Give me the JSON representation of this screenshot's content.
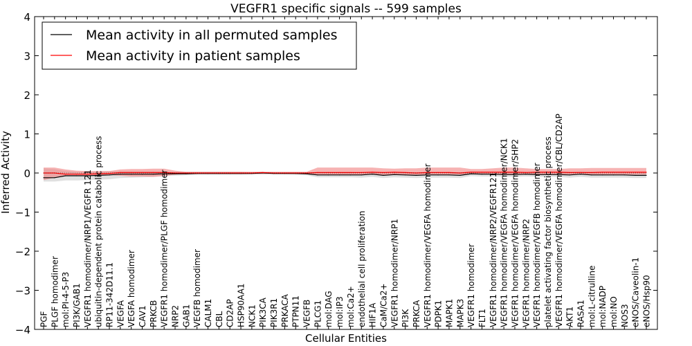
{
  "chart_data": {
    "type": "line",
    "title": "VEGFR1 specific signals -- 599 samples",
    "xlabel": "Cellular Entities",
    "ylabel": "Inferred Activity",
    "ylim": [
      -4,
      4
    ],
    "yticks": [
      -4,
      -3,
      -2,
      -1,
      0,
      1,
      2,
      3,
      4
    ],
    "ytick_labels": [
      "−4",
      "−3",
      "−2",
      "−1",
      "0",
      "1",
      "2",
      "3",
      "4"
    ],
    "grid": false,
    "legend_position": "top-left",
    "categories": [
      "PGF",
      "PLGF homodimer",
      "mol:PI-4-5-P3",
      "PI3K/GAB1",
      "VEGFR1 homodimer/NRP1/VEGFR 121",
      "ubiquitin-dependent protein catabolic process",
      "RP11-342D11.1",
      "VEGFA",
      "VEGFA homodimer",
      "CAV1",
      "PRKCB",
      "VEGFR1 homodimer/PLGF homodimer",
      "NRP2",
      "GAB1",
      "VEGFB homodimer",
      "CALM1",
      "CBL",
      "CD2AP",
      "HSP90AA1",
      "NCK1",
      "PIK3CA",
      "PIK3R1",
      "PRKACA",
      "PTPN11",
      "VEGFB",
      "PLCG1",
      "mol:DAG",
      "mol:IP3",
      "mol:Ca2+",
      "endothelial cell proliferation",
      "HIF1A",
      "CaM/Ca2+",
      "VEGFR1 homodimer/NRP1",
      "PI3K",
      "PRKCA",
      "VEGFR1 homodimer/VEGFA homodimer",
      "PDPK1",
      "MAPK1",
      "MAPK3",
      "VEGFR1 homodimer",
      "FLT1",
      "VEGFR1 homodimer/NRP2/VEGFR121",
      "VEGFR1 homodimer/VEGFA homodimer/NCK1",
      "VEGFR1 homodimer/VEGFA homodimer/SHP2",
      "VEGFR1 homodimer/NRP2",
      "VEGFR1 homodimer/VEGFB homodimer",
      "platelet activating factor biosynthetic process",
      "VEGFR1 homodimer/VEGFA homodimer/CBL/CD2AP",
      "AKT1",
      "RASA1",
      "mol:L-citrulline",
      "mol:NADP",
      "mol:NO",
      "NOS3",
      "eNOS/Caveolin-1",
      "eNOS/Hsp90"
    ],
    "series": [
      {
        "name": "Mean activity in all permuted samples",
        "color": "#000000",
        "band_color": "#bbbbbb",
        "values": [
          -0.12,
          -0.12,
          -0.07,
          -0.07,
          -0.07,
          -0.06,
          -0.05,
          -0.03,
          -0.03,
          -0.03,
          -0.03,
          -0.02,
          -0.02,
          -0.02,
          -0.01,
          -0.01,
          -0.01,
          -0.01,
          -0.01,
          -0.01,
          0.0,
          -0.01,
          -0.01,
          -0.01,
          -0.02,
          -0.05,
          -0.05,
          -0.05,
          -0.05,
          -0.05,
          -0.03,
          -0.06,
          -0.04,
          -0.05,
          -0.06,
          -0.05,
          -0.05,
          -0.05,
          -0.06,
          -0.02,
          -0.03,
          -0.03,
          -0.04,
          -0.04,
          -0.03,
          -0.04,
          -0.04,
          -0.04,
          -0.05,
          -0.03,
          -0.05,
          -0.05,
          -0.05,
          -0.05,
          -0.06,
          -0.06
        ],
        "lower": [
          -0.22,
          -0.22,
          -0.19,
          -0.19,
          -0.18,
          -0.17,
          -0.16,
          -0.13,
          -0.12,
          -0.11,
          -0.1,
          -0.08,
          -0.07,
          -0.06,
          -0.05,
          -0.05,
          -0.05,
          -0.05,
          -0.05,
          -0.04,
          -0.04,
          -0.04,
          -0.04,
          -0.05,
          -0.06,
          -0.11,
          -0.11,
          -0.11,
          -0.11,
          -0.12,
          -0.1,
          -0.13,
          -0.11,
          -0.12,
          -0.13,
          -0.12,
          -0.12,
          -0.12,
          -0.13,
          -0.08,
          -0.09,
          -0.09,
          -0.1,
          -0.1,
          -0.09,
          -0.1,
          -0.1,
          -0.1,
          -0.12,
          -0.1,
          -0.12,
          -0.12,
          -0.12,
          -0.12,
          -0.13,
          -0.13
        ],
        "upper": [
          0.12,
          0.1,
          0.05,
          0.03,
          0.03,
          0.04,
          0.05,
          0.05,
          0.05,
          0.05,
          0.05,
          0.04,
          0.03,
          0.03,
          0.03,
          0.03,
          0.03,
          0.03,
          0.03,
          0.02,
          0.03,
          0.02,
          0.02,
          0.02,
          0.02,
          0.03,
          0.03,
          0.03,
          0.03,
          0.02,
          0.04,
          0.02,
          0.03,
          0.03,
          0.02,
          0.03,
          0.03,
          0.03,
          0.02,
          0.05,
          0.04,
          0.04,
          0.04,
          0.04,
          0.04,
          0.04,
          0.04,
          0.04,
          0.03,
          0.05,
          0.03,
          0.03,
          0.03,
          0.03,
          0.02,
          0.02
        ]
      },
      {
        "name": "Mean activity in patient samples",
        "color": "#ff0000",
        "band_color": "#f08080",
        "values": [
          0.0,
          0.0,
          -0.03,
          -0.03,
          -0.03,
          -0.02,
          -0.01,
          0.01,
          0.01,
          0.01,
          0.01,
          0.01,
          0.0,
          0.0,
          0.0,
          0.0,
          0.0,
          0.0,
          0.0,
          0.0,
          0.01,
          0.0,
          0.0,
          0.0,
          0.0,
          0.01,
          0.01,
          0.01,
          0.01,
          0.01,
          0.02,
          0.01,
          0.02,
          0.01,
          0.0,
          0.01,
          0.01,
          0.01,
          0.0,
          0.02,
          0.02,
          0.02,
          0.02,
          0.02,
          0.01,
          0.02,
          0.02,
          0.02,
          0.01,
          0.01,
          0.01,
          0.02,
          0.02,
          0.02,
          0.02,
          0.02
        ],
        "lower": [
          -0.18,
          -0.12,
          -0.08,
          -0.08,
          -0.07,
          -0.06,
          -0.05,
          -0.07,
          -0.09,
          -0.09,
          -0.1,
          -0.08,
          -0.04,
          -0.02,
          -0.02,
          -0.02,
          -0.02,
          -0.02,
          -0.02,
          -0.02,
          -0.02,
          -0.02,
          -0.02,
          -0.02,
          -0.02,
          -0.05,
          -0.05,
          -0.05,
          -0.05,
          -0.05,
          -0.04,
          -0.05,
          -0.04,
          -0.05,
          -0.05,
          -0.04,
          -0.04,
          -0.04,
          -0.04,
          -0.03,
          -0.03,
          -0.03,
          -0.03,
          -0.03,
          -0.03,
          -0.03,
          -0.03,
          -0.03,
          -0.04,
          -0.04,
          -0.04,
          -0.04,
          -0.04,
          -0.04,
          -0.04,
          -0.04
        ],
        "upper": [
          0.14,
          0.14,
          0.09,
          0.06,
          0.05,
          0.05,
          0.05,
          0.09,
          0.1,
          0.1,
          0.11,
          0.11,
          0.06,
          0.03,
          0.03,
          0.03,
          0.03,
          0.03,
          0.03,
          0.03,
          0.03,
          0.03,
          0.03,
          0.03,
          0.03,
          0.14,
          0.14,
          0.14,
          0.14,
          0.14,
          0.14,
          0.12,
          0.11,
          0.12,
          0.12,
          0.14,
          0.14,
          0.14,
          0.14,
          0.1,
          0.1,
          0.12,
          0.14,
          0.14,
          0.12,
          0.1,
          0.1,
          0.1,
          0.12,
          0.12,
          0.13,
          0.13,
          0.13,
          0.13,
          0.13,
          0.13
        ]
      }
    ]
  }
}
